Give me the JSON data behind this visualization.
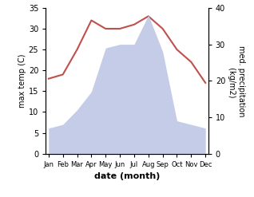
{
  "months": [
    "Jan",
    "Feb",
    "Mar",
    "Apr",
    "May",
    "Jun",
    "Jul",
    "Aug",
    "Sep",
    "Oct",
    "Nov",
    "Dec"
  ],
  "temperature": [
    18,
    19,
    25,
    32,
    30,
    30,
    31,
    33,
    30,
    25,
    22,
    17
  ],
  "precipitation": [
    7,
    8,
    12,
    17,
    29,
    30,
    30,
    38,
    28,
    9,
    8,
    7
  ],
  "temp_color": "#c0504d",
  "precip_fill_color": "#c5cce8",
  "ylabel_left": "max temp (C)",
  "ylabel_right": "med. precipitation\n (kg/m2)",
  "xlabel": "date (month)",
  "ylim_left": [
    0,
    35
  ],
  "ylim_right": [
    0,
    40
  ],
  "yticks_left": [
    0,
    5,
    10,
    15,
    20,
    25,
    30,
    35
  ],
  "yticks_right": [
    0,
    10,
    20,
    30,
    40
  ],
  "background_color": "#ffffff"
}
